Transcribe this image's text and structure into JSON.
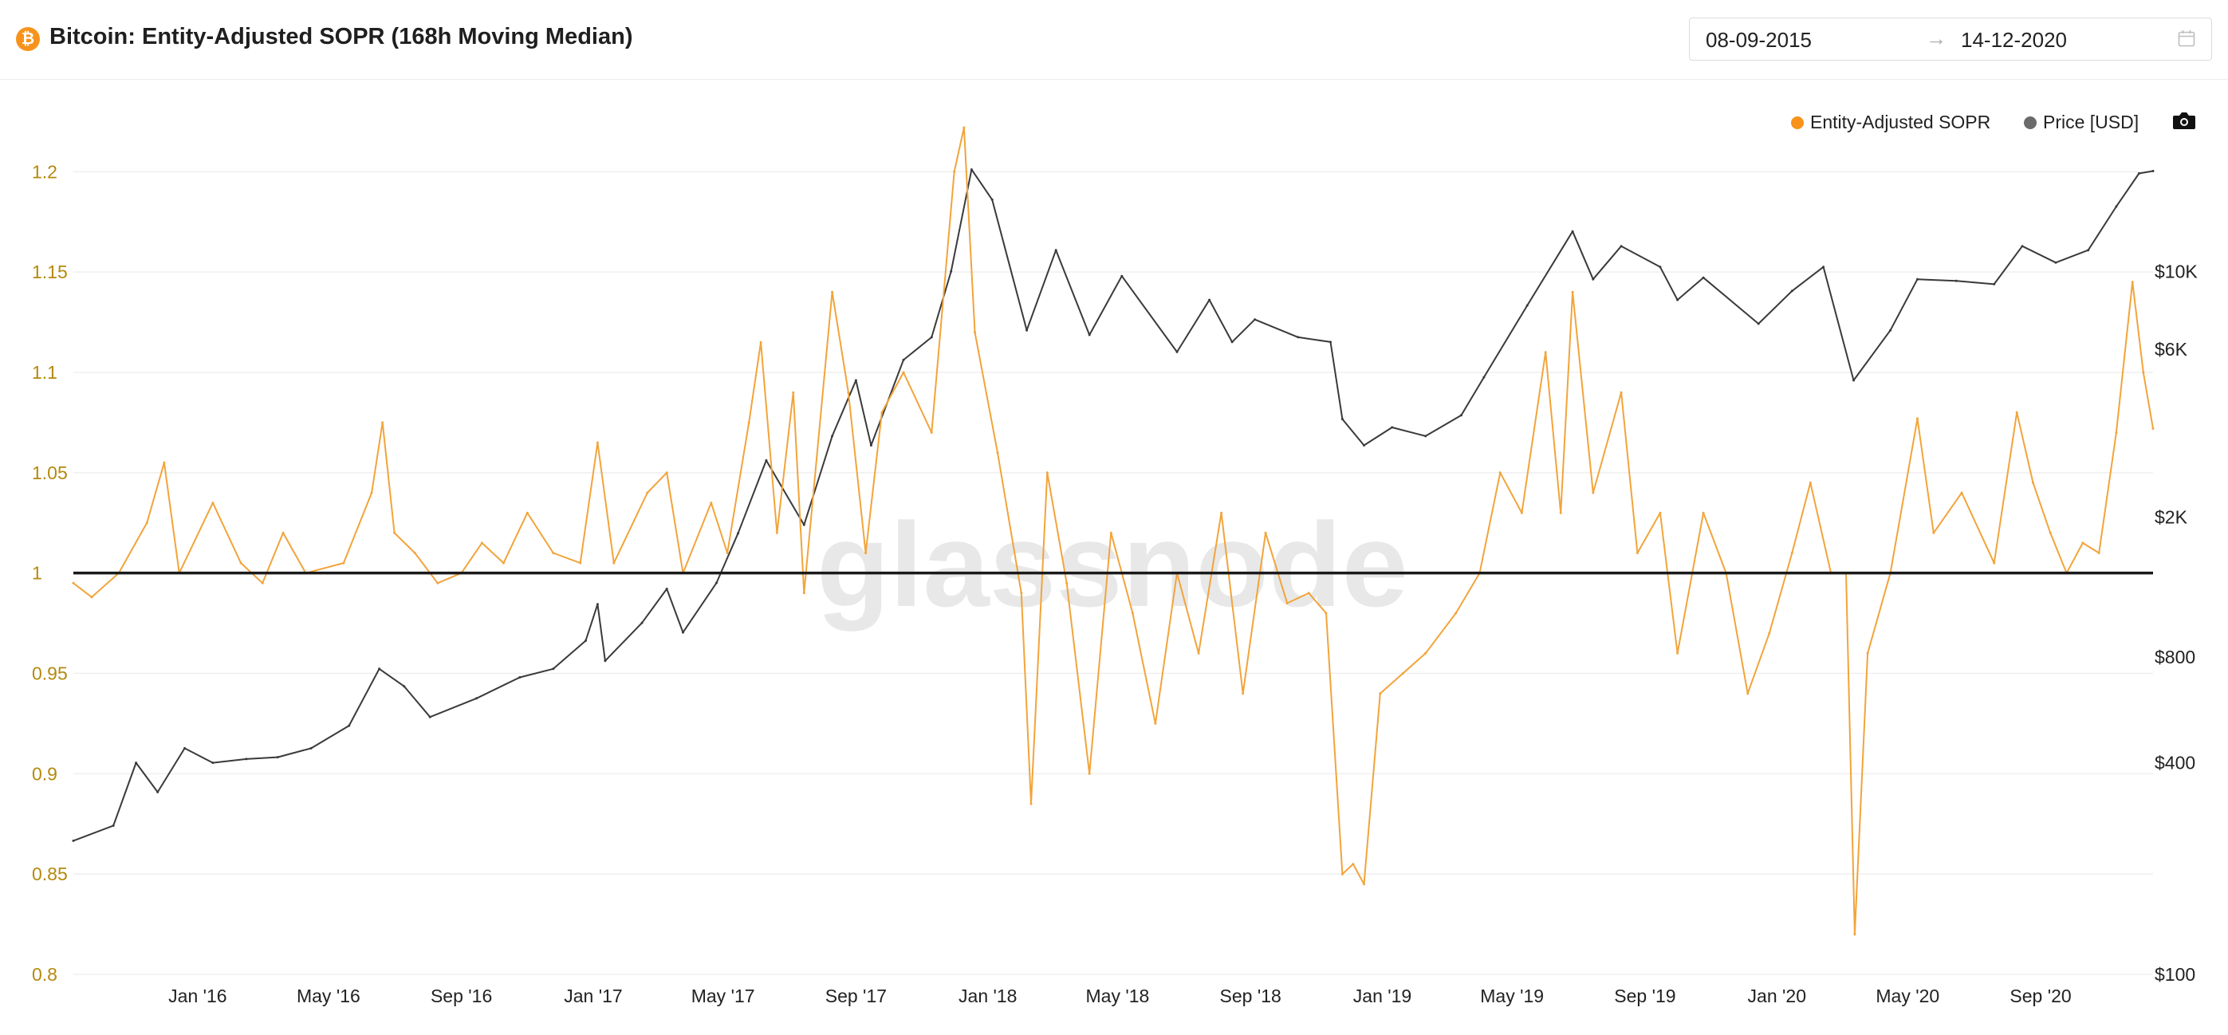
{
  "header": {
    "title": "Bitcoin: Entity-Adjusted SOPR (168h Moving Median)",
    "brand_icon": "bitcoin-icon",
    "date_start": "08-09-2015",
    "date_end": "14-12-2020",
    "date_arrow": "→",
    "calendar_icon": "calendar-icon"
  },
  "legend": {
    "sopr_label": "Entity-Adjusted SOPR",
    "price_label": "Price [USD]",
    "sopr_color": "#f7931a",
    "price_color": "#6b6b6b",
    "camera_icon": "camera-icon"
  },
  "watermark": "glassnode",
  "chart_data": {
    "type": "line",
    "title": "Bitcoin: Entity-Adjusted SOPR (168h Moving Median)",
    "xlim": [
      "2015-09-08",
      "2020-12-14"
    ],
    "x_ticks": [
      {
        "date": "2016-01-01",
        "label": "Jan '16"
      },
      {
        "date": "2016-05-01",
        "label": "May '16"
      },
      {
        "date": "2016-09-01",
        "label": "Sep '16"
      },
      {
        "date": "2017-01-01",
        "label": "Jan '17"
      },
      {
        "date": "2017-05-01",
        "label": "May '17"
      },
      {
        "date": "2017-09-01",
        "label": "Sep '17"
      },
      {
        "date": "2018-01-01",
        "label": "Jan '18"
      },
      {
        "date": "2018-05-01",
        "label": "May '18"
      },
      {
        "date": "2018-09-01",
        "label": "Sep '18"
      },
      {
        "date": "2019-01-01",
        "label": "Jan '19"
      },
      {
        "date": "2019-05-01",
        "label": "May '19"
      },
      {
        "date": "2019-09-01",
        "label": "Sep '19"
      },
      {
        "date": "2020-01-01",
        "label": "Jan '20"
      },
      {
        "date": "2020-05-01",
        "label": "May '20"
      },
      {
        "date": "2020-09-01",
        "label": "Sep '20"
      }
    ],
    "y_left": {
      "ylim": [
        0.8,
        1.22
      ],
      "ticks": [
        {
          "value": 0.8,
          "label": "0.8"
        },
        {
          "value": 0.85,
          "label": "0.85"
        },
        {
          "value": 0.9,
          "label": "0.9"
        },
        {
          "value": 0.95,
          "label": "0.95"
        },
        {
          "value": 1.0,
          "label": "1"
        },
        {
          "value": 1.05,
          "label": "1.05"
        },
        {
          "value": 1.1,
          "label": "1.1"
        },
        {
          "value": 1.15,
          "label": "1.15"
        },
        {
          "value": 1.2,
          "label": "1.2"
        }
      ]
    },
    "y_right": {
      "scale": "log",
      "ylim": [
        100,
        25000
      ],
      "ticks": [
        {
          "value": 100,
          "label": "$100"
        },
        {
          "value": 400,
          "label": "$400"
        },
        {
          "value": 800,
          "label": "$800"
        },
        {
          "value": 2000,
          "label": "$2K"
        },
        {
          "value": 6000,
          "label": "$6K"
        },
        {
          "value": 10000,
          "label": "$10K"
        }
      ]
    },
    "reference_line": {
      "value": 1.0,
      "color": "#1a1a1a"
    },
    "grid": true,
    "legend_position": "top-right",
    "series": [
      {
        "name": "Entity-Adjusted SOPR",
        "axis": "left",
        "color": "#f2a43a",
        "points": [
          [
            "2015-09-08",
            0.995
          ],
          [
            "2015-09-25",
            0.988
          ],
          [
            "2015-10-20",
            1.0
          ],
          [
            "2015-11-15",
            1.025
          ],
          [
            "2015-12-01",
            1.055
          ],
          [
            "2015-12-15",
            1.0
          ],
          [
            "2016-01-15",
            1.035
          ],
          [
            "2016-02-10",
            1.005
          ],
          [
            "2016-03-01",
            0.995
          ],
          [
            "2016-03-20",
            1.02
          ],
          [
            "2016-04-10",
            1.0
          ],
          [
            "2016-05-15",
            1.005
          ],
          [
            "2016-06-10",
            1.04
          ],
          [
            "2016-06-20",
            1.075
          ],
          [
            "2016-07-01",
            1.02
          ],
          [
            "2016-07-20",
            1.01
          ],
          [
            "2016-08-10",
            0.995
          ],
          [
            "2016-09-01",
            1.0
          ],
          [
            "2016-09-20",
            1.015
          ],
          [
            "2016-10-10",
            1.005
          ],
          [
            "2016-11-01",
            1.03
          ],
          [
            "2016-11-25",
            1.01
          ],
          [
            "2016-12-20",
            1.005
          ],
          [
            "2017-01-05",
            1.065
          ],
          [
            "2017-01-20",
            1.005
          ],
          [
            "2017-02-20",
            1.04
          ],
          [
            "2017-03-10",
            1.05
          ],
          [
            "2017-03-25",
            1.0
          ],
          [
            "2017-04-20",
            1.035
          ],
          [
            "2017-05-05",
            1.01
          ],
          [
            "2017-05-25",
            1.075
          ],
          [
            "2017-06-05",
            1.115
          ],
          [
            "2017-06-20",
            1.02
          ],
          [
            "2017-07-05",
            1.09
          ],
          [
            "2017-07-15",
            0.99
          ],
          [
            "2017-08-10",
            1.14
          ],
          [
            "2017-08-25",
            1.09
          ],
          [
            "2017-09-10",
            1.01
          ],
          [
            "2017-09-25",
            1.08
          ],
          [
            "2017-10-15",
            1.1
          ],
          [
            "2017-11-10",
            1.07
          ],
          [
            "2017-12-01",
            1.2
          ],
          [
            "2017-12-10",
            1.222
          ],
          [
            "2017-12-20",
            1.12
          ],
          [
            "2018-01-10",
            1.06
          ],
          [
            "2018-02-01",
            0.99
          ],
          [
            "2018-02-10",
            0.885
          ],
          [
            "2018-02-25",
            1.05
          ],
          [
            "2018-03-15",
            0.995
          ],
          [
            "2018-04-05",
            0.9
          ],
          [
            "2018-04-25",
            1.02
          ],
          [
            "2018-05-15",
            0.98
          ],
          [
            "2018-06-05",
            0.925
          ],
          [
            "2018-06-25",
            1.0
          ],
          [
            "2018-07-15",
            0.96
          ],
          [
            "2018-08-05",
            1.03
          ],
          [
            "2018-08-25",
            0.94
          ],
          [
            "2018-09-15",
            1.02
          ],
          [
            "2018-10-05",
            0.985
          ],
          [
            "2018-10-25",
            0.99
          ],
          [
            "2018-11-10",
            0.98
          ],
          [
            "2018-11-25",
            0.85
          ],
          [
            "2018-12-05",
            0.855
          ],
          [
            "2018-12-15",
            0.845
          ],
          [
            "2018-12-30",
            0.94
          ],
          [
            "2019-01-20",
            0.95
          ],
          [
            "2019-02-10",
            0.96
          ],
          [
            "2019-03-10",
            0.98
          ],
          [
            "2019-04-01",
            1.0
          ],
          [
            "2019-04-20",
            1.05
          ],
          [
            "2019-05-10",
            1.03
          ],
          [
            "2019-06-01",
            1.11
          ],
          [
            "2019-06-15",
            1.03
          ],
          [
            "2019-06-26",
            1.14
          ],
          [
            "2019-07-15",
            1.04
          ],
          [
            "2019-08-10",
            1.09
          ],
          [
            "2019-08-25",
            1.01
          ],
          [
            "2019-09-15",
            1.03
          ],
          [
            "2019-10-01",
            0.96
          ],
          [
            "2019-10-25",
            1.03
          ],
          [
            "2019-11-15",
            1.0
          ],
          [
            "2019-12-05",
            0.94
          ],
          [
            "2019-12-25",
            0.97
          ],
          [
            "2020-01-15",
            1.01
          ],
          [
            "2020-02-01",
            1.045
          ],
          [
            "2020-02-20",
            1.0
          ],
          [
            "2020-03-05",
            1.0
          ],
          [
            "2020-03-13",
            0.82
          ],
          [
            "2020-03-25",
            0.96
          ],
          [
            "2020-04-15",
            1.0
          ],
          [
            "2020-05-10",
            1.077
          ],
          [
            "2020-05-25",
            1.02
          ],
          [
            "2020-06-20",
            1.04
          ],
          [
            "2020-07-20",
            1.005
          ],
          [
            "2020-08-10",
            1.08
          ],
          [
            "2020-08-25",
            1.045
          ],
          [
            "2020-09-10",
            1.02
          ],
          [
            "2020-09-25",
            1.0
          ],
          [
            "2020-10-10",
            1.015
          ],
          [
            "2020-10-25",
            1.01
          ],
          [
            "2020-11-10",
            1.07
          ],
          [
            "2020-11-25",
            1.145
          ],
          [
            "2020-12-05",
            1.1
          ],
          [
            "2020-12-14",
            1.072
          ]
        ]
      },
      {
        "name": "Price [USD]",
        "axis": "right",
        "color": "#3a3a3a",
        "points": [
          [
            "2015-09-08",
            240
          ],
          [
            "2015-10-15",
            265
          ],
          [
            "2015-11-05",
            400
          ],
          [
            "2015-11-25",
            330
          ],
          [
            "2015-12-20",
            440
          ],
          [
            "2016-01-15",
            400
          ],
          [
            "2016-02-15",
            410
          ],
          [
            "2016-03-15",
            415
          ],
          [
            "2016-04-15",
            440
          ],
          [
            "2016-05-20",
            510
          ],
          [
            "2016-06-17",
            740
          ],
          [
            "2016-07-10",
            660
          ],
          [
            "2016-08-03",
            540
          ],
          [
            "2016-09-15",
            610
          ],
          [
            "2016-10-25",
            700
          ],
          [
            "2016-11-25",
            740
          ],
          [
            "2016-12-25",
            890
          ],
          [
            "2017-01-05",
            1130
          ],
          [
            "2017-01-12",
            780
          ],
          [
            "2017-02-15",
            1000
          ],
          [
            "2017-03-10",
            1250
          ],
          [
            "2017-03-25",
            940
          ],
          [
            "2017-04-25",
            1300
          ],
          [
            "2017-05-15",
            1800
          ],
          [
            "2017-06-10",
            2900
          ],
          [
            "2017-07-15",
            1900
          ],
          [
            "2017-08-10",
            3400
          ],
          [
            "2017-09-01",
            4900
          ],
          [
            "2017-09-15",
            3200
          ],
          [
            "2017-10-15",
            5600
          ],
          [
            "2017-11-10",
            6500
          ],
          [
            "2017-11-28",
            10000
          ],
          [
            "2017-12-17",
            19500
          ],
          [
            "2018-01-05",
            16000
          ],
          [
            "2018-02-06",
            6800
          ],
          [
            "2018-03-05",
            11500
          ],
          [
            "2018-04-05",
            6600
          ],
          [
            "2018-05-05",
            9700
          ],
          [
            "2018-06-25",
            5900
          ],
          [
            "2018-07-25",
            8300
          ],
          [
            "2018-08-15",
            6300
          ],
          [
            "2018-09-05",
            7300
          ],
          [
            "2018-10-15",
            6500
          ],
          [
            "2018-11-14",
            6300
          ],
          [
            "2018-11-25",
            3800
          ],
          [
            "2018-12-15",
            3200
          ],
          [
            "2019-01-10",
            3600
          ],
          [
            "2019-02-10",
            3400
          ],
          [
            "2019-03-15",
            3900
          ],
          [
            "2019-04-05",
            5000
          ],
          [
            "2019-05-15",
            8000
          ],
          [
            "2019-06-26",
            13000
          ],
          [
            "2019-07-15",
            9500
          ],
          [
            "2019-08-10",
            11800
          ],
          [
            "2019-09-15",
            10300
          ],
          [
            "2019-10-01",
            8300
          ],
          [
            "2019-10-25",
            9600
          ],
          [
            "2019-12-15",
            7100
          ],
          [
            "2020-01-15",
            8800
          ],
          [
            "2020-02-13",
            10300
          ],
          [
            "2020-03-12",
            4900
          ],
          [
            "2020-04-15",
            6800
          ],
          [
            "2020-05-10",
            9500
          ],
          [
            "2020-06-15",
            9400
          ],
          [
            "2020-07-20",
            9200
          ],
          [
            "2020-08-15",
            11800
          ],
          [
            "2020-09-15",
            10600
          ],
          [
            "2020-10-15",
            11500
          ],
          [
            "2020-11-10",
            15300
          ],
          [
            "2020-12-01",
            19000
          ],
          [
            "2020-12-14",
            19300
          ]
        ]
      }
    ]
  }
}
